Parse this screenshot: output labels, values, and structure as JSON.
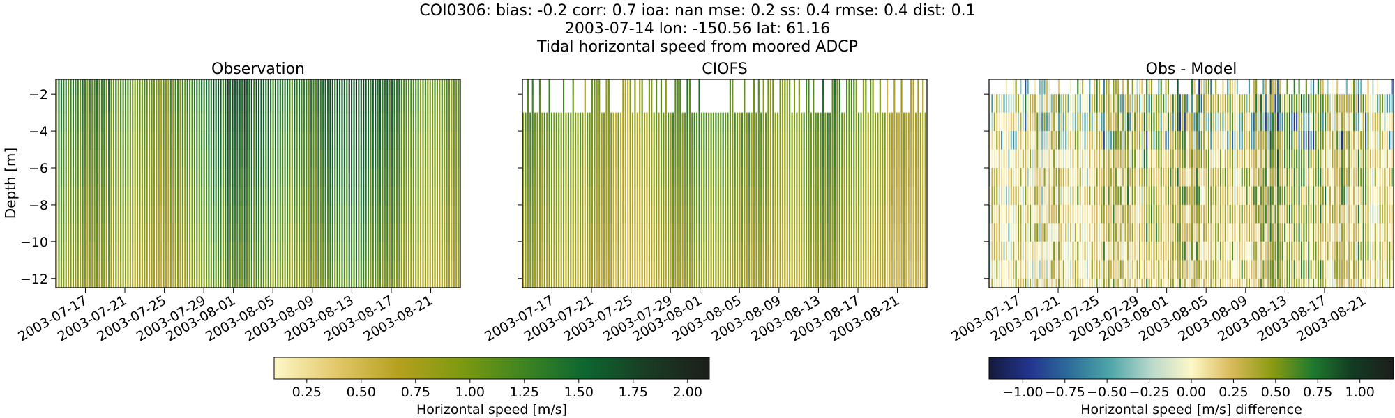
{
  "figure": {
    "title_lines": [
      "COI0306: bias: -0.2  corr: 0.7  ioa: nan  mse: 0.2  ss: 0.4  rmse: 0.4  dist: 0.1",
      "2003-07-14 lon: -150.56 lat: 61.16",
      "Tidal horizontal speed from moored ADCP"
    ]
  },
  "chart_data": [
    {
      "type": "heatmap",
      "title": "Observation",
      "ylabel": "Depth [m]",
      "xlabel": "",
      "xlim": [
        "2003-07-14",
        "2003-08-24"
      ],
      "ylim": [
        -12.5,
        -1.2
      ],
      "xticks": [
        "2003-07-17",
        "2003-07-21",
        "2003-07-25",
        "2003-07-29",
        "2003-08-01",
        "2003-08-05",
        "2003-08-09",
        "2003-08-13",
        "2003-08-17",
        "2003-08-21"
      ],
      "yticks": [
        -2,
        -4,
        -6,
        -8,
        -10,
        -12
      ],
      "depth_bins": [
        -1.5,
        -2.5,
        -3.5,
        -4.5,
        -5.5,
        -6.5,
        -7.5,
        -8.5,
        -9.5,
        -10.5,
        -11.5,
        -12.5
      ],
      "colormap": "speed",
      "value_range": [
        0.1,
        2.1
      ],
      "value_units": "m/s",
      "note": "Dense vertical stripes: per-profile tidal speed varying ~0.25-2.0 m/s; strongest (dark) near 2003-08-01 and 2003-08-13",
      "envelope": {
        "x": [
          "2003-07-14",
          "2003-07-21",
          "2003-07-25",
          "2003-07-29",
          "2003-08-01",
          "2003-08-05",
          "2003-08-09",
          "2003-08-13",
          "2003-08-17",
          "2003-08-21",
          "2003-08-24"
        ],
        "mean_speed": [
          1.15,
          1.0,
          0.8,
          1.2,
          1.45,
          1.25,
          1.05,
          1.55,
          1.15,
          0.9,
          1.0
        ]
      }
    },
    {
      "type": "heatmap",
      "title": "CIOFS",
      "xlim": [
        "2003-07-14",
        "2003-08-24"
      ],
      "ylim": [
        -12.5,
        -1.2
      ],
      "xticks": [
        "2003-07-17",
        "2003-07-21",
        "2003-07-25",
        "2003-07-29",
        "2003-08-01",
        "2003-08-05",
        "2003-08-09",
        "2003-08-13",
        "2003-08-17",
        "2003-08-21"
      ],
      "colormap": "speed",
      "value_range": [
        0.1,
        2.1
      ],
      "value_units": "m/s",
      "note": "Model speed stripes, generally lighter than observed; white gaps where model absent near the surface",
      "envelope": {
        "x": [
          "2003-07-14",
          "2003-07-21",
          "2003-07-25",
          "2003-07-29",
          "2003-08-01",
          "2003-08-05",
          "2003-08-09",
          "2003-08-13",
          "2003-08-17",
          "2003-08-21",
          "2003-08-24"
        ],
        "mean_speed": [
          1.05,
          0.85,
          0.65,
          0.9,
          1.1,
          0.95,
          0.8,
          1.05,
          0.9,
          0.65,
          0.7
        ]
      }
    },
    {
      "type": "heatmap",
      "title": "Obs - Model",
      "xlim": [
        "2003-07-14",
        "2003-08-24"
      ],
      "ylim": [
        -12.5,
        -1.2
      ],
      "xticks": [
        "2003-07-17",
        "2003-07-21",
        "2003-07-25",
        "2003-07-29",
        "2003-08-01",
        "2003-08-05",
        "2003-08-09",
        "2003-08-13",
        "2003-08-17",
        "2003-08-21"
      ],
      "colormap": "diverging_delta",
      "value_range": [
        -1.2,
        1.2
      ],
      "value_units": "m/s",
      "note": "Difference field: mostly positive (obs faster) with scattered negative teal/blue near surface"
    }
  ],
  "colorbars": [
    {
      "label": "Horizontal speed [m/s]",
      "range": [
        0.1,
        2.1
      ],
      "ticks": [
        "0.25",
        "0.50",
        "0.75",
        "1.00",
        "1.25",
        "1.50",
        "1.75",
        "2.00"
      ],
      "tick_values": [
        0.25,
        0.5,
        0.75,
        1.0,
        1.25,
        1.5,
        1.75,
        2.0
      ],
      "colors": [
        "#fdf8c8",
        "#e2c86a",
        "#b5a01f",
        "#7e9a10",
        "#3f8522",
        "#0e6630",
        "#1a3c23",
        "#1c1e1b"
      ]
    },
    {
      "label": "Horizontal speed [m/s] difference",
      "range": [
        -1.2,
        1.2
      ],
      "ticks": [
        "−1.00",
        "−0.75",
        "−0.50",
        "−0.25",
        "0.00",
        "0.25",
        "0.50",
        "0.75",
        "1.00"
      ],
      "tick_values": [
        -1.0,
        -0.75,
        -0.5,
        -0.25,
        0.0,
        0.25,
        0.5,
        0.75,
        1.0
      ],
      "colors": [
        "#141a3b",
        "#23348f",
        "#2d6e9a",
        "#4fa6a8",
        "#b8d8cc",
        "#fdf8c8",
        "#d9b95a",
        "#8a9b12",
        "#1f7a2e",
        "#133a23",
        "#1c1e1b"
      ]
    }
  ]
}
